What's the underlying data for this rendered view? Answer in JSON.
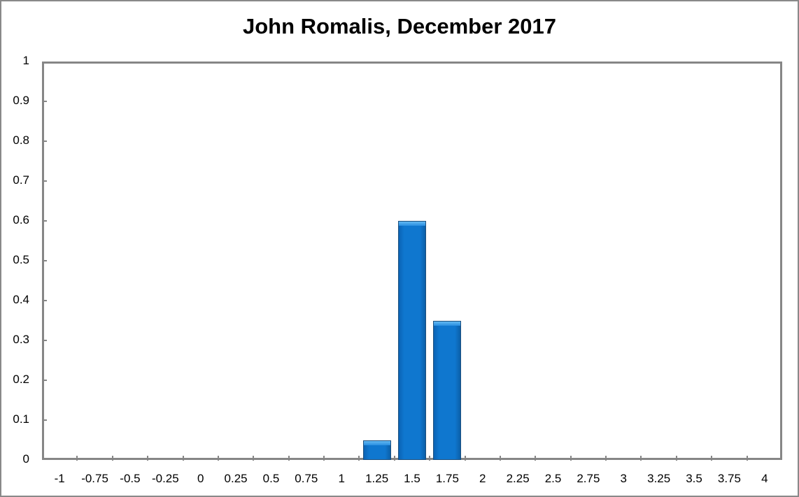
{
  "chart_data": {
    "type": "bar",
    "title": "John Romalis, December 2017",
    "xlabel": "",
    "ylabel": "",
    "categories": [
      "-1",
      "-0.75",
      "-0.5",
      "-0.25",
      "0",
      "0.25",
      "0.5",
      "0.75",
      "1",
      "1.25",
      "1.5",
      "1.75",
      "2",
      "2.25",
      "2.5",
      "2.75",
      "3",
      "3.25",
      "3.5",
      "3.75",
      "4"
    ],
    "values": [
      0,
      0,
      0,
      0,
      0,
      0,
      0,
      0,
      0,
      0.05,
      0.6,
      0.35,
      0,
      0,
      0,
      0,
      0,
      0,
      0,
      0,
      0
    ],
    "ylim": [
      0,
      1
    ],
    "yticks": [
      "0",
      "0.1",
      "0.2",
      "0.3",
      "0.4",
      "0.5",
      "0.6",
      "0.7",
      "0.8",
      "0.9",
      "1"
    ],
    "grid": false,
    "legend": null,
    "bar_color": "#0f77cf"
  }
}
